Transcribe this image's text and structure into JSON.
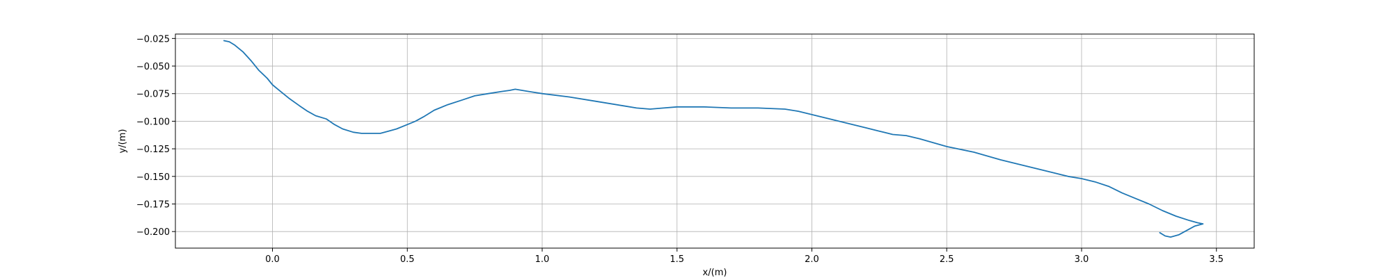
{
  "chart_data": {
    "type": "line",
    "title": "",
    "xlabel": "x/(m)",
    "ylabel": "y/(m)",
    "xlim": [
      -0.36,
      3.64
    ],
    "ylim": [
      -0.215,
      -0.021
    ],
    "xticks": [
      0.0,
      0.5,
      1.0,
      1.5,
      2.0,
      2.5,
      3.0,
      3.5
    ],
    "xtick_labels": [
      "0.0",
      "0.5",
      "1.0",
      "1.5",
      "2.0",
      "2.5",
      "3.0",
      "3.5"
    ],
    "yticks": [
      -0.025,
      -0.05,
      -0.075,
      -0.1,
      -0.125,
      -0.15,
      -0.175,
      -0.2
    ],
    "ytick_labels": [
      "−0.025",
      "−0.050",
      "−0.075",
      "−0.100",
      "−0.125",
      "−0.150",
      "−0.175",
      "−0.200"
    ],
    "grid": true,
    "series": [
      {
        "color": "#1f77b4",
        "x": [
          -0.18,
          -0.16,
          -0.14,
          -0.11,
          -0.08,
          -0.05,
          -0.02,
          0.0,
          0.03,
          0.06,
          0.1,
          0.13,
          0.16,
          0.2,
          0.23,
          0.26,
          0.3,
          0.33,
          0.36,
          0.4,
          0.43,
          0.46,
          0.5,
          0.53,
          0.56,
          0.6,
          0.65,
          0.7,
          0.75,
          0.8,
          0.85,
          0.88,
          0.9,
          0.95,
          1.0,
          1.1,
          1.2,
          1.3,
          1.35,
          1.4,
          1.45,
          1.5,
          1.55,
          1.6,
          1.7,
          1.8,
          1.9,
          1.95,
          2.0,
          2.1,
          2.2,
          2.25,
          2.3,
          2.35,
          2.4,
          2.5,
          2.6,
          2.7,
          2.8,
          2.9,
          2.95,
          3.0,
          3.05,
          3.1,
          3.15,
          3.2,
          3.25,
          3.3,
          3.35,
          3.4,
          3.43,
          3.45,
          3.42,
          3.39,
          3.36,
          3.33,
          3.31,
          3.29
        ],
        "y": [
          -0.027,
          -0.028,
          -0.031,
          -0.037,
          -0.045,
          -0.054,
          -0.061,
          -0.067,
          -0.073,
          -0.079,
          -0.086,
          -0.091,
          -0.095,
          -0.098,
          -0.103,
          -0.107,
          -0.11,
          -0.111,
          -0.111,
          -0.111,
          -0.109,
          -0.107,
          -0.103,
          -0.1,
          -0.096,
          -0.09,
          -0.085,
          -0.081,
          -0.077,
          -0.075,
          -0.073,
          -0.072,
          -0.071,
          -0.073,
          -0.075,
          -0.078,
          -0.082,
          -0.086,
          -0.088,
          -0.089,
          -0.088,
          -0.087,
          -0.087,
          -0.087,
          -0.088,
          -0.088,
          -0.089,
          -0.091,
          -0.094,
          -0.1,
          -0.106,
          -0.109,
          -0.112,
          -0.113,
          -0.116,
          -0.123,
          -0.128,
          -0.135,
          -0.141,
          -0.147,
          -0.15,
          -0.152,
          -0.155,
          -0.159,
          -0.165,
          -0.17,
          -0.175,
          -0.181,
          -0.186,
          -0.19,
          -0.192,
          -0.193,
          -0.195,
          -0.199,
          -0.203,
          -0.205,
          -0.204,
          -0.201
        ]
      }
    ]
  }
}
